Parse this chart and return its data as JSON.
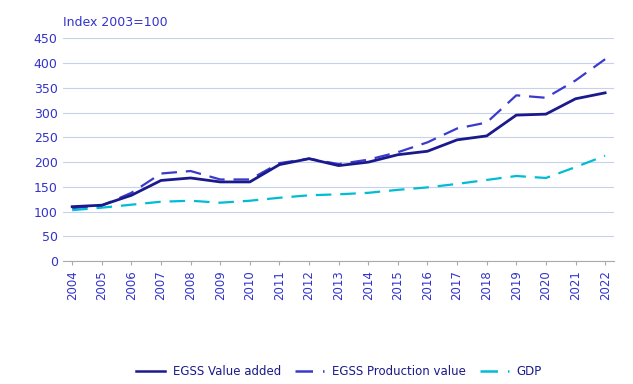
{
  "years": [
    2004,
    2005,
    2006,
    2007,
    2008,
    2009,
    2010,
    2011,
    2012,
    2013,
    2014,
    2015,
    2016,
    2017,
    2018,
    2019,
    2020,
    2021,
    2022
  ],
  "egss_value_added": [
    110,
    113,
    133,
    163,
    168,
    160,
    160,
    195,
    207,
    193,
    200,
    215,
    222,
    245,
    253,
    295,
    297,
    328,
    340
  ],
  "egss_production_value": [
    107,
    112,
    138,
    177,
    182,
    165,
    165,
    198,
    207,
    196,
    205,
    220,
    240,
    268,
    280,
    335,
    330,
    365,
    408
  ],
  "gdp": [
    103,
    108,
    114,
    120,
    122,
    118,
    122,
    128,
    133,
    135,
    138,
    144,
    149,
    156,
    164,
    172,
    168,
    190,
    213
  ],
  "ylabel": "Index 2003=100",
  "ylim": [
    0,
    450
  ],
  "yticks": [
    0,
    50,
    100,
    150,
    200,
    250,
    300,
    350,
    400,
    450
  ],
  "egss_value_color": "#1a1a8c",
  "egss_production_color": "#3a3acc",
  "gdp_color": "#00bcd4",
  "background_color": "#ffffff",
  "grid_color": "#c8d0ea",
  "legend_labels": [
    "EGSS Value added",
    "EGSS Production value",
    "GDP"
  ],
  "legend_text_color": "#1a1a8c",
  "tick_color": "#3333cc",
  "ylabel_color": "#3333cc"
}
